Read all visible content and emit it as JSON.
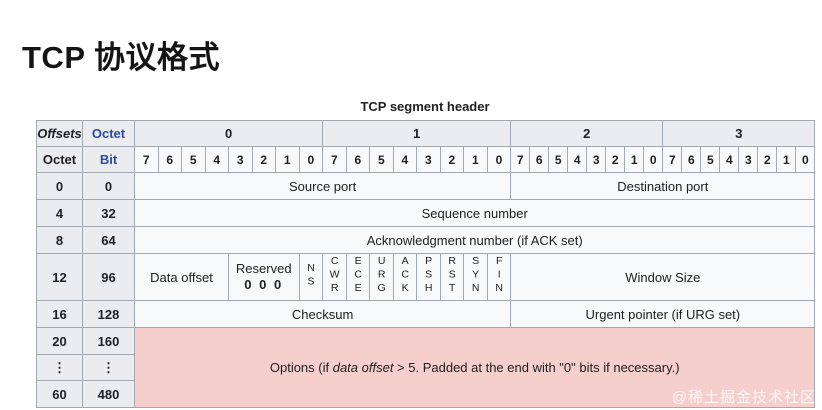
{
  "page": {
    "title": "TCP 协议格式",
    "caption": "TCP segment header",
    "watermark": "@稀土掘金技术社区"
  },
  "header": {
    "offsets_label": "Offsets",
    "octet_label": "Octet",
    "octet_row_label": "Octet",
    "bit_label": "Bit",
    "octet_groups": [
      "0",
      "1",
      "2",
      "3"
    ],
    "bit_numbers": [
      "7",
      "6",
      "5",
      "4",
      "3",
      "2",
      "1",
      "0"
    ]
  },
  "rows": {
    "r0": {
      "octet": "0",
      "bit": "0",
      "source_port": "Source port",
      "destination_port": "Destination port"
    },
    "r4": {
      "octet": "4",
      "bit": "32",
      "sequence_number": "Sequence number"
    },
    "r8": {
      "octet": "8",
      "bit": "64",
      "acknowledgment": "Acknowledgment number (if ACK set)"
    },
    "r12": {
      "octet": "12",
      "bit": "96",
      "data_offset": "Data offset",
      "reserved_label": "Reserved",
      "reserved_value": "0 0 0",
      "flags": [
        "NS",
        "CWR",
        "ECE",
        "URG",
        "ACK",
        "PSH",
        "RST",
        "SYN",
        "FIN"
      ],
      "window_size": "Window Size"
    },
    "r16": {
      "octet": "16",
      "bit": "128",
      "checksum": "Checksum",
      "urgent_pointer": "Urgent pointer (if URG set)"
    },
    "r20": {
      "octet": "20",
      "bit": "160"
    },
    "rdots": {
      "octet": "⋮",
      "bit": "⋮"
    },
    "r60": {
      "octet": "60",
      "bit": "480"
    },
    "options": {
      "before": "Options (if ",
      "italic": "data offset",
      "after": " > 5. Padded at the end with \"0\" bits if necessary.)"
    }
  },
  "colors": {
    "table_border": "#a2a9b1",
    "header_bg": "#eaecf0",
    "cell_bg": "#f8f9fa",
    "options_bg": "#f5cfcc",
    "label_blue": "#2b4ba5",
    "title_black": "#151515"
  }
}
